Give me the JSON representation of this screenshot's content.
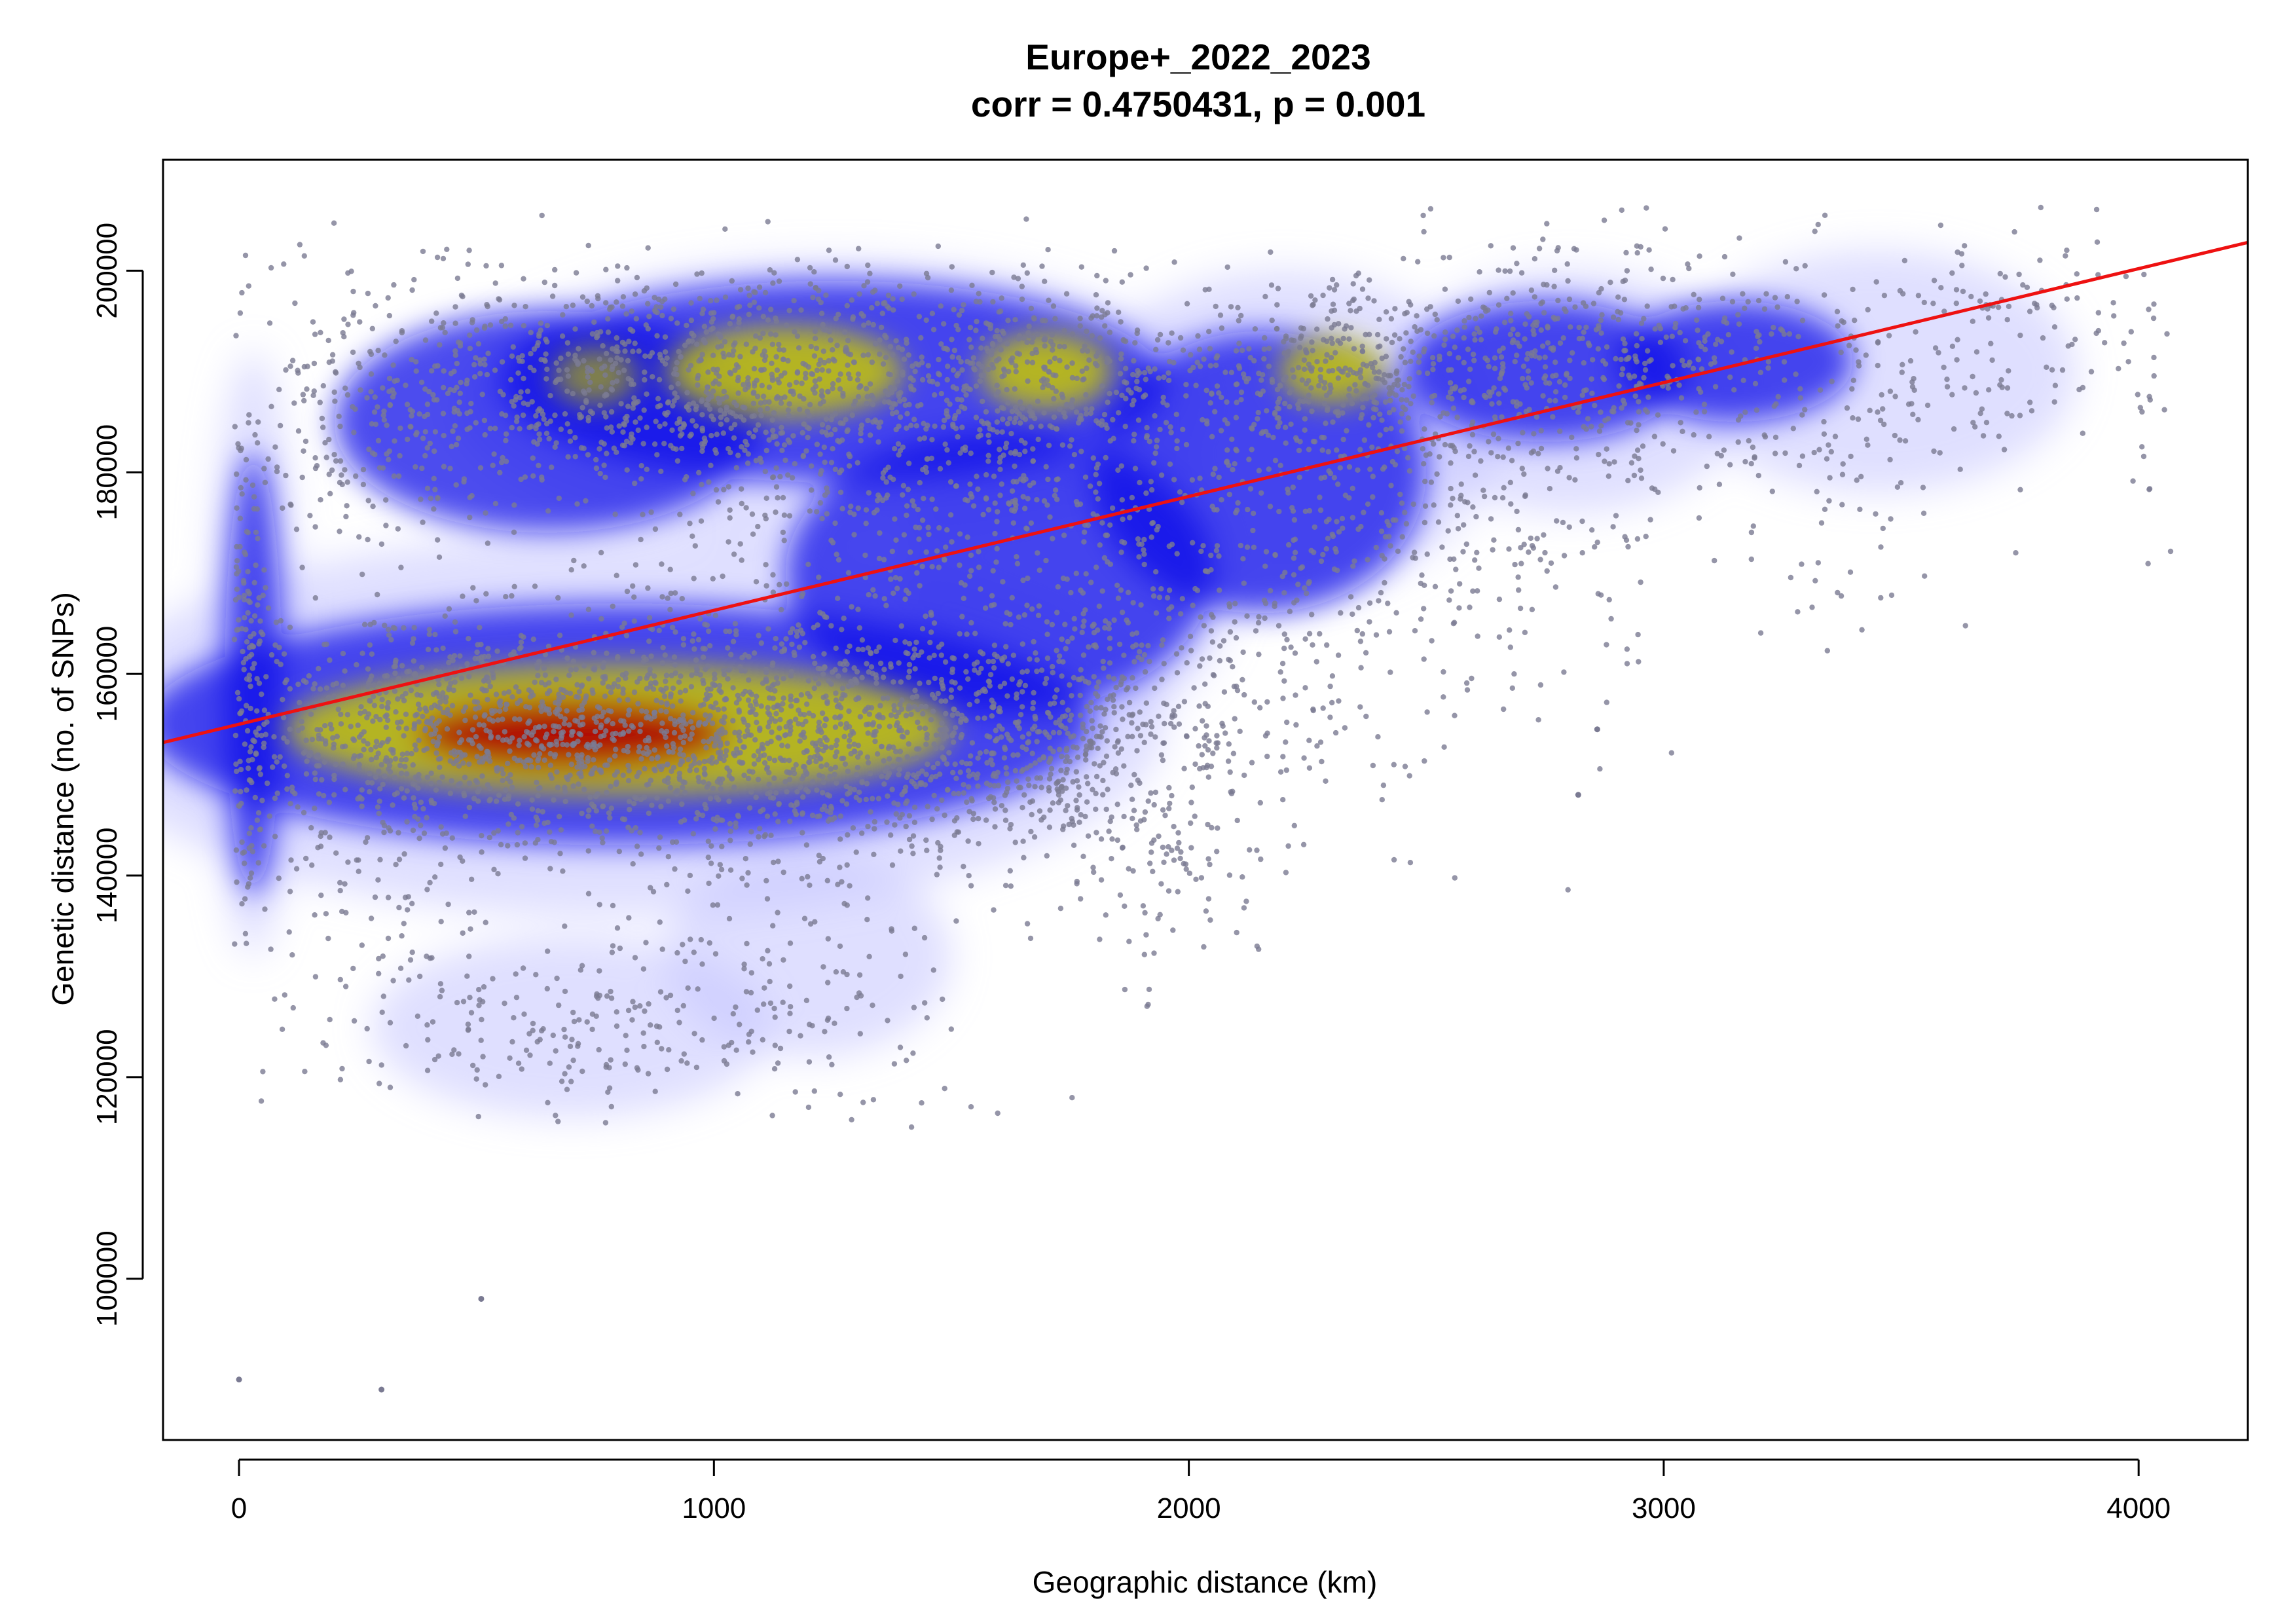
{
  "chart_data": {
    "type": "scatter",
    "title": "Europe+_2022_2023",
    "subtitle": "corr = 0.4750431, p = 0.001",
    "xlabel": "Geographic distance (km)",
    "ylabel": "Genetic distance (no. of SNPs)",
    "xlim": [
      -160,
      4230
    ],
    "ylim": [
      84000,
      211000
    ],
    "x_ticks": [
      0,
      1000,
      2000,
      3000,
      4000
    ],
    "x_tick_labels": [
      "0",
      "1000",
      "2000",
      "3000",
      "4000"
    ],
    "y_ticks": [
      100000,
      120000,
      140000,
      160000,
      180000,
      200000
    ],
    "y_tick_labels": [
      "100000",
      "120000",
      "140000",
      "160000",
      "180000",
      "200000"
    ],
    "grid": false,
    "legend": "none",
    "point_color": "#7a7a92",
    "regression_line": {
      "color": "#ee1111",
      "intercept": 155000,
      "slope": 11.3
    },
    "density_colormap": [
      "#ffffff",
      "#0000ff",
      "#00009a",
      "#c8c800",
      "#b00000"
    ],
    "density_hotspots": [
      {
        "x": 700,
        "y": 154000,
        "level": "highest"
      },
      {
        "x": 1200,
        "y": 190000,
        "level": "high"
      },
      {
        "x": 1700,
        "y": 190000,
        "level": "high"
      },
      {
        "x": 2300,
        "y": 190000,
        "level": "high"
      },
      {
        "x": 750,
        "y": 189500,
        "level": "medium"
      }
    ],
    "outliers": [
      {
        "x": 0,
        "y": 90000
      },
      {
        "x": 300,
        "y": 89000
      },
      {
        "x": 510,
        "y": 98000
      },
      {
        "x": 2820,
        "y": 148000
      },
      {
        "x": 2860,
        "y": 154500
      }
    ]
  }
}
